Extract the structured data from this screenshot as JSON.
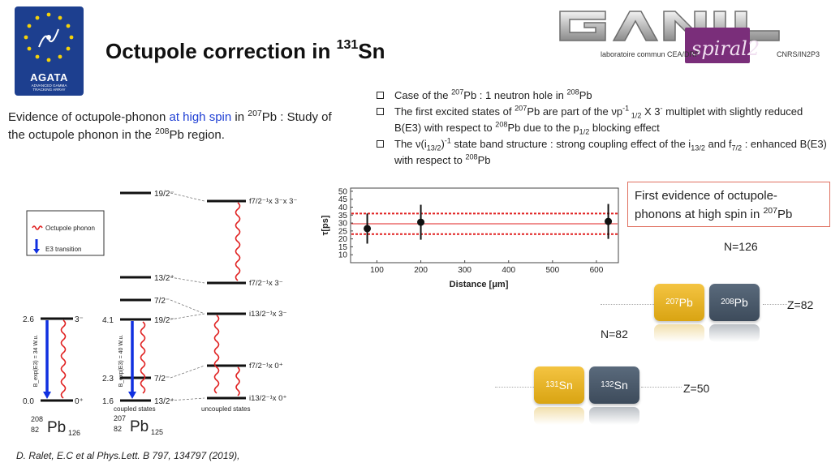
{
  "header": {
    "title_main": "Octupole correction in ",
    "title_mass": "131",
    "title_element": "Sn",
    "agata_name": "AGATA",
    "agata_sub_1": "ADVANCED GAMMA",
    "agata_sub_2": "TRACKING ARRAY",
    "ganil_lab": "laboratoire commun CEA/DRF",
    "ganil_cnrs": "CNRS/IN2P3",
    "spiral_text": "spiral2"
  },
  "evidence": {
    "part1": "Evidence of octupole-phonon ",
    "highlight": "at high spin",
    "part2": " in ",
    "mass": "207",
    "part3": "Pb : Study of the octupole phonon in the ",
    "mass2": "208",
    "part4": "Pb region."
  },
  "bullets": {
    "b1": {
      "a": "Case of the ",
      "m1": "207",
      "b": "Pb : 1 neutron hole in ",
      "m2": "208",
      "c": "Pb"
    },
    "b2": {
      "a": "The first excited states of ",
      "m1": "207",
      "b": "Pb are part of the ",
      "nu": "ν",
      "p": "p",
      "sup1": "-1",
      "sub1": " 1/2",
      "c": " X 3",
      "sup2": "-",
      "d": " multiplet with slightly reduced B(E3) with respect to ",
      "m2": "208",
      "e": "Pb due to the p",
      "sub2": "1/2",
      "f": " blocking effect"
    },
    "b3": {
      "a": "The ",
      "nu": "ν",
      "b": "(i",
      "sub1": "13/2",
      "c": ")",
      "sup1": "-1",
      "d": " state band structure : strong coupling effect of the i",
      "sub2": "13/2",
      "e": " and f",
      "sub3": "7/2",
      "f": " : enhanced B(E3) with respect to ",
      "m": "208",
      "g": "Pb"
    }
  },
  "level_scheme": {
    "legend_phonon": "Octupole phonon",
    "legend_e3": "E3 transition",
    "pb208": {
      "energy_top": "2.6",
      "energy_bottom": "0.0",
      "spin_top": "3⁻",
      "spin_bottom": "0⁺",
      "be3": "B_exp(E3) = 34 W.u.",
      "nuc_mass": "208",
      "nuc_z": "82",
      "nuc_el": "Pb",
      "nuc_n": "126"
    },
    "coupled": {
      "levels": [
        "19/2⁻",
        "13/2⁺",
        "7/2⁻",
        "19/2⁻",
        "7/2⁻",
        "13/2⁺"
      ],
      "energies": [
        "4.1",
        "2.3",
        "1.6"
      ],
      "be3": "B_exp(E3) = 40 W.u.",
      "label": "coupled states"
    },
    "uncoupled": {
      "levels": [
        "f7/2⁻¹x 3⁻x 3⁻",
        "f7/2⁻¹x 3⁻",
        "i13/2⁻¹x 3⁻",
        "f7/2⁻¹x 0⁺",
        "i13/2⁻¹x 0⁺"
      ],
      "label": "uncoupled states"
    },
    "pb207": {
      "nuc_mass": "207",
      "nuc_z": "82",
      "nuc_el": "Pb",
      "nuc_n": "125"
    }
  },
  "chart_data": {
    "type": "scatter",
    "title": "",
    "xlabel": "Distance [μm]",
    "ylabel": "τ[ps]",
    "xlim": [
      40,
      650
    ],
    "ylim": [
      5,
      52
    ],
    "xticks": [
      100,
      200,
      300,
      400,
      500,
      600
    ],
    "yticks": [
      10,
      15,
      20,
      25,
      30,
      35,
      40,
      45,
      50
    ],
    "points": [
      {
        "x": 78,
        "y": 26.5,
        "err": 9.5
      },
      {
        "x": 200,
        "y": 30.5,
        "err": 11
      },
      {
        "x": 627,
        "y": 31,
        "err": 11
      }
    ],
    "band": {
      "mean": 29.5,
      "upper": 36,
      "lower": 23
    },
    "colors": {
      "band": "#e02020",
      "points": "#111111"
    }
  },
  "callout": {
    "text": "First evidence of octupole-phonons at high spin in ",
    "mass": "207",
    "element": "Pb"
  },
  "nuclides": {
    "n126": "N=126",
    "n82": "N=82",
    "z82": "Z=82",
    "z50": "Z=50",
    "pb207": {
      "mass": "207",
      "el": "Pb"
    },
    "pb208": {
      "mass": "208",
      "el": "Pb"
    },
    "sn131": {
      "mass": "131",
      "el": "Sn"
    },
    "sn132": {
      "mass": "132",
      "el": "Sn"
    }
  },
  "reference": "D. Ralet, E.C et al Phys.Lett. B 797, 134797 (2019),"
}
